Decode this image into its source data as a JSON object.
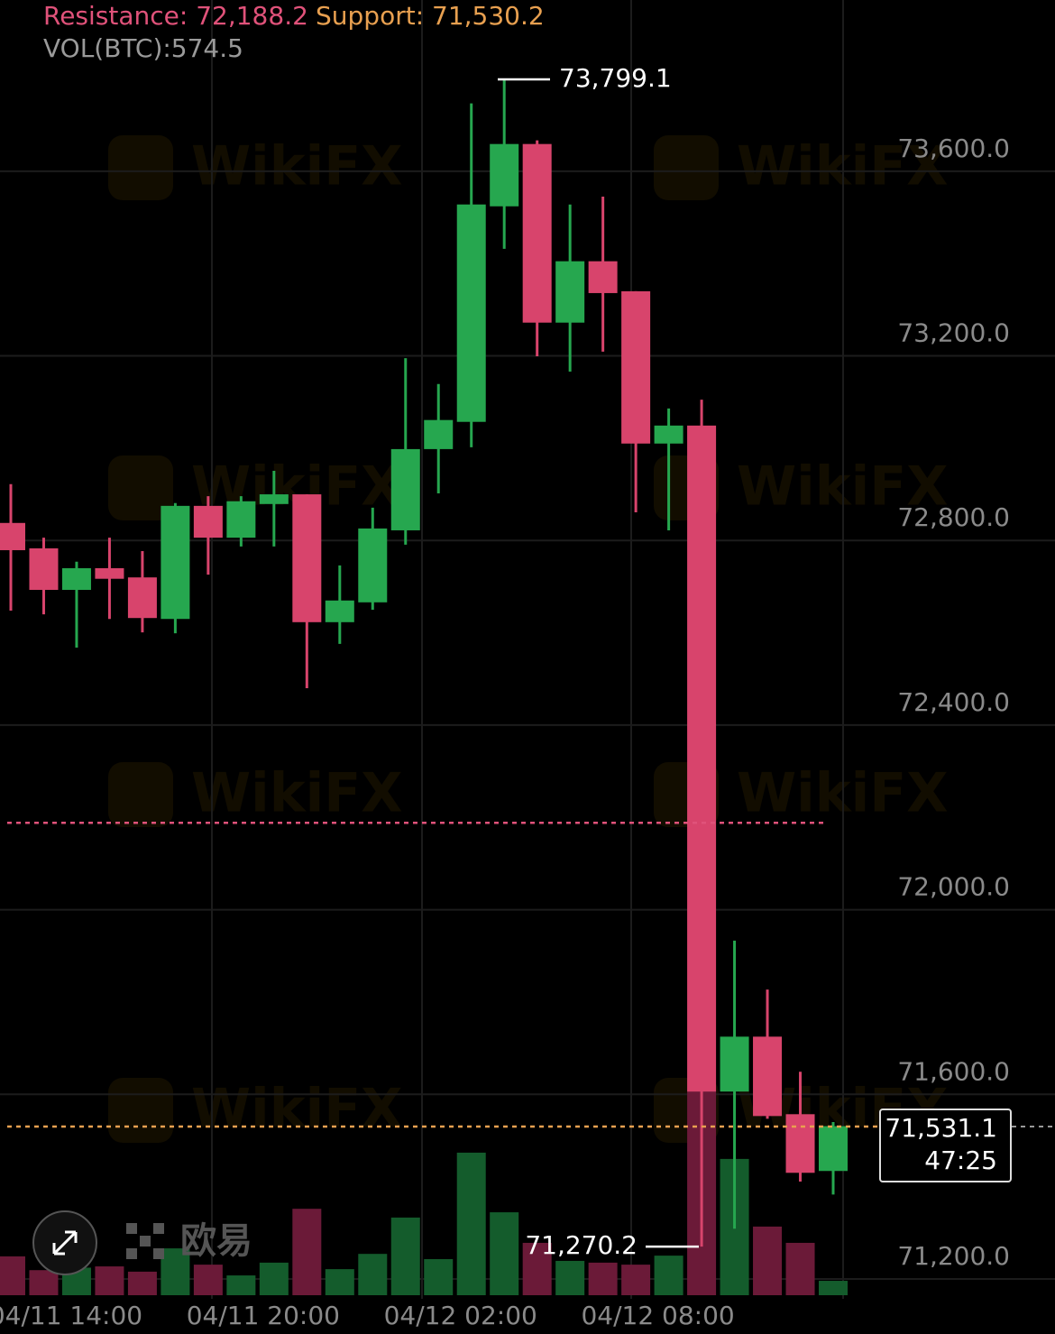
{
  "chart_data": {
    "type": "candlestick",
    "categories": [
      null,
      null,
      "04/11 14:00",
      null,
      null,
      null,
      null,
      null,
      "04/11 20:00",
      null,
      null,
      null,
      null,
      null,
      "04/12 02:00",
      null,
      null,
      null,
      null,
      null,
      "04/12 08:00",
      null,
      null,
      null,
      null,
      null
    ],
    "open": [
      72838,
      72783,
      72693,
      72740,
      72720,
      72630,
      72875,
      72806,
      72879,
      72900,
      72623,
      72666,
      72822,
      72998,
      73057,
      73524,
      73659,
      73272,
      73405,
      73340,
      73010,
      73049,
      71606,
      71725,
      71557,
      71434
    ],
    "high": [
      72922,
      72806,
      72754,
      72806,
      72777,
      72881,
      72896,
      72896,
      72951,
      72900,
      72746,
      72871,
      73195,
      73139,
      73747,
      73799.1,
      73667,
      73528,
      73545,
      73340,
      73086,
      73105,
      71933,
      71827,
      71649,
      71540
    ],
    "low": [
      72648,
      72640,
      72568,
      72630,
      72601,
      72599,
      72726,
      72787,
      72787,
      72480,
      72576,
      72650,
      72791,
      72902,
      73002,
      73432,
      73199,
      73166,
      73209,
      72861,
      72822,
      71270.2,
      71309,
      71547,
      71411,
      71383
    ],
    "close": [
      72779,
      72693,
      72740,
      72717,
      72632,
      72875,
      72806,
      72885,
      72900,
      72623,
      72670,
      72826,
      72998,
      73061,
      73528,
      73659,
      73272,
      73405,
      73336,
      73010,
      73049,
      71606,
      71725,
      71553,
      71430,
      71531.1
    ],
    "volume": [
      1550,
      1000,
      1100,
      1150,
      940,
      1870,
      1220,
      790,
      1300,
      3450,
      1040,
      1650,
      3100,
      1440,
      5690,
      3310,
      2090,
      1370,
      1300,
      1220,
      1580,
      8140,
      5440,
      2740,
      2090,
      574.5
    ],
    "volume_lim": [
      0,
      9000
    ],
    "up_color": "#26a74f",
    "down_color": "#d8446c",
    "up_volume_color": "#145c2c",
    "down_volume_color": "#6b1a38",
    "ylim": [
      71157,
      73971
    ],
    "yticks": [
      {
        "value": 73600,
        "label": "73,600.0"
      },
      {
        "value": 73200,
        "label": "73,200.0"
      },
      {
        "value": 72800,
        "label": "72,800.0"
      },
      {
        "value": 72400,
        "label": "72,400.0"
      },
      {
        "value": 72000,
        "label": "72,000.0"
      },
      {
        "value": 71600,
        "label": "71,600.0"
      },
      {
        "value": 71200,
        "label": "71,200.0"
      }
    ],
    "grid": true,
    "resistance": {
      "value": 72188.2,
      "label": "Resistance: 72,188.2",
      "color": "#e0527a"
    },
    "support": {
      "value": 71530.2,
      "label": "Support: 71,530.2",
      "color": "#e8a050"
    },
    "volume_label": {
      "value": 574.5,
      "label": "VOL(BTC):574.5"
    },
    "max_label": {
      "value": 73799.1,
      "label": "73,799.1"
    },
    "min_label": {
      "value": 71270.2,
      "label": "71,270.2"
    },
    "last_price": {
      "value": 71531.1,
      "label": "71,531.1"
    },
    "countdown": "47:25",
    "watermark": "WikiFX",
    "brand": "欧易"
  }
}
